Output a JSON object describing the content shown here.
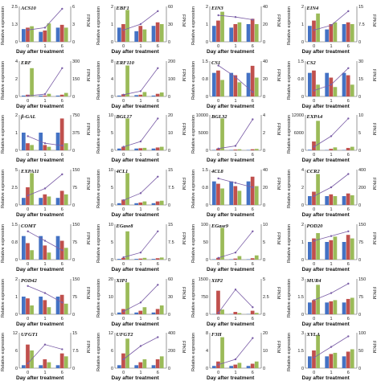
{
  "colors": {
    "bar_blue": "#4472c4",
    "bar_red": "#c0504d",
    "bar_green": "#9bbb59",
    "bar_orange": "#f79646",
    "bar_teal": "#4bacc6",
    "bar_purple": "#8064a2",
    "line_purple": "#7b5ea7",
    "line_orange": "#f0a04b"
  },
  "labels": {
    "x_axis_title": "Day after treatment",
    "y_left_title": "Relative expression",
    "y_right_title": "FPKM"
  },
  "chart_data": [
    {
      "gene": "ACS10",
      "type": "bar",
      "x": [
        "0",
        "1",
        "6"
      ],
      "ylim": [
        0,
        2.5
      ],
      "y2lim": [
        0,
        6
      ],
      "bars": [
        [
          0.9,
          1.0,
          1.1
        ],
        [
          0.7,
          0.8,
          1.3
        ],
        [
          1.0,
          1.2,
          1.0
        ]
      ],
      "line": [
        2,
        2.4,
        5.6
      ]
    },
    {
      "gene": "EBF1",
      "type": "bar",
      "x": [
        "0",
        "1",
        "6"
      ],
      "ylim": [
        0,
        2
      ],
      "y2lim": [
        0,
        60
      ],
      "bars": [
        [
          0.8,
          1.0,
          1.8
        ],
        [
          0.6,
          0.9,
          0.7
        ],
        [
          0.9,
          1.1,
          1.0
        ]
      ],
      "line": [
        20,
        30,
        52
      ]
    },
    {
      "gene": "EIN3",
      "type": "bar",
      "x": [
        "0",
        "1",
        "6"
      ],
      "ylim": [
        0,
        2
      ],
      "y2lim": [
        0,
        40
      ],
      "bars": [
        [
          0.9,
          1.2,
          1.7
        ],
        [
          0.8,
          1.0,
          1.1
        ],
        [
          1.0,
          1.3,
          1.0
        ]
      ],
      "line": [
        30,
        28,
        25
      ]
    },
    {
      "gene": "EIN4",
      "type": "bar",
      "x": [
        "0",
        "1",
        "6"
      ],
      "ylim": [
        0,
        2
      ],
      "y2lim": [
        0,
        15
      ],
      "bars": [
        [
          0.9,
          1.2,
          1.6
        ],
        [
          0.7,
          1.0,
          1.1
        ],
        [
          1.0,
          1.1,
          1.0
        ]
      ],
      "line": [
        5,
        7,
        13
      ]
    },
    {
      "gene": "ERF",
      "type": "bar",
      "x": [
        "0",
        "1",
        "6"
      ],
      "ylim": [
        0,
        4
      ],
      "y2lim": [
        0,
        300
      ],
      "bars": [
        [
          0.1,
          0.2,
          3.2
        ],
        [
          0.1,
          0.1,
          0.3
        ],
        [
          0.1,
          0.2,
          0.4
        ]
      ],
      "line": [
        5,
        20,
        240
      ]
    },
    {
      "gene": "ERF110",
      "type": "bar",
      "x": [
        "0",
        "1",
        "6"
      ],
      "ylim": [
        0,
        8
      ],
      "y2lim": [
        0,
        200
      ],
      "bars": [
        [
          0.2,
          0.5,
          7.0
        ],
        [
          0.3,
          0.4,
          1.0
        ],
        [
          0.2,
          0.6,
          0.9
        ]
      ],
      "line": [
        10,
        30,
        160
      ]
    },
    {
      "gene": "CS1",
      "type": "bar",
      "x": [
        "0",
        "1",
        "6"
      ],
      "ylim": [
        0,
        1.5
      ],
      "y2lim": [
        0,
        40
      ],
      "bars": [
        [
          1.0,
          1.1,
          0.7
        ],
        [
          1.0,
          0.9,
          0.6
        ],
        [
          1.0,
          1.3,
          0.8
        ]
      ],
      "line": [
        35,
        22,
        5
      ]
    },
    {
      "gene": "CS2",
      "type": "bar",
      "x": [
        "0",
        "1",
        "6"
      ],
      "ylim": [
        0,
        1.5
      ],
      "y2lim": [
        0,
        30
      ],
      "bars": [
        [
          1.0,
          1.1,
          0.5
        ],
        [
          1.0,
          0.8,
          0.4
        ],
        [
          1.0,
          0.9,
          0.5
        ]
      ],
      "line": [
        5,
        10,
        24
      ]
    },
    {
      "gene": "β-GAL",
      "type": "bar",
      "x": [
        "0",
        "1",
        "6"
      ],
      "ylim": [
        0,
        2
      ],
      "y2lim": [
        0,
        750
      ],
      "bars": [
        [
          1.0,
          0.4,
          0.3
        ],
        [
          1.0,
          0.3,
          0.2
        ],
        [
          1.0,
          1.8,
          0.4
        ]
      ],
      "line": [
        300,
        150,
        100
      ]
    },
    {
      "gene": "BGL17",
      "type": "bar",
      "x": [
        "0",
        "1",
        "6"
      ],
      "ylim": [
        0,
        10
      ],
      "y2lim": [
        0,
        20
      ],
      "bars": [
        [
          0.5,
          1.0,
          9.0
        ],
        [
          0.5,
          0.6,
          0.7
        ],
        [
          0.5,
          0.8,
          1.0
        ]
      ],
      "line": [
        2,
        5,
        18
      ]
    },
    {
      "gene": "BGL32",
      "type": "bar",
      "x": [
        "0",
        "1",
        "6"
      ],
      "ylim": [
        0,
        10000
      ],
      "y2lim": [
        0,
        4
      ],
      "bars": [
        [
          100,
          500,
          9000
        ],
        [
          100,
          200,
          300
        ],
        [
          100,
          300,
          400
        ]
      ],
      "line": [
        0.2,
        0.5,
        3.5
      ]
    },
    {
      "gene": "EXPA4",
      "type": "bar",
      "x": [
        "0",
        "1",
        "6"
      ],
      "ylim": [
        0,
        12000
      ],
      "y2lim": [
        0,
        10
      ],
      "bars": [
        [
          200,
          3000,
          10000
        ],
        [
          100,
          500,
          1000
        ],
        [
          100,
          800,
          1200
        ]
      ],
      "line": [
        1,
        4,
        9
      ]
    },
    {
      "gene": "EXPA11",
      "type": "bar",
      "x": [
        "0",
        "1",
        "6"
      ],
      "ylim": [
        0,
        5
      ],
      "y2lim": [
        0,
        150
      ],
      "bars": [
        [
          1.0,
          2.5,
          4.5
        ],
        [
          1.0,
          1.5,
          1.2
        ],
        [
          1.0,
          2.0,
          1.5
        ]
      ],
      "line": [
        40,
        70,
        130
      ]
    },
    {
      "gene": "4CL1",
      "type": "bar",
      "x": [
        "0",
        "1",
        "6"
      ],
      "ylim": [
        0,
        10
      ],
      "y2lim": [
        0,
        15
      ],
      "bars": [
        [
          0.5,
          1.5,
          9.0
        ],
        [
          0.5,
          0.7,
          1.0
        ],
        [
          0.5,
          1.0,
          1.2
        ]
      ],
      "line": [
        2,
        5,
        12
      ]
    },
    {
      "gene": "4CL8",
      "type": "bar",
      "x": [
        "0",
        "1",
        "6"
      ],
      "ylim": [
        0,
        1.5
      ],
      "y2lim": [
        0,
        40
      ],
      "bars": [
        [
          1.0,
          0.9,
          0.7
        ],
        [
          1.0,
          0.8,
          0.6
        ],
        [
          1.0,
          1.2,
          0.8
        ]
      ],
      "line": [
        30,
        25,
        20
      ]
    },
    {
      "gene": "CCR2",
      "type": "bar",
      "x": [
        "0",
        "1",
        "6"
      ],
      "ylim": [
        0,
        4
      ],
      "y2lim": [
        0,
        400
      ],
      "bars": [
        [
          1.0,
          1.5,
          3.5
        ],
        [
          1.0,
          1.2,
          1.0
        ],
        [
          1.0,
          1.3,
          1.1
        ]
      ],
      "line": [
        100,
        200,
        350
      ]
    },
    {
      "gene": "COMT",
      "type": "bar",
      "x": [
        "0",
        "1",
        "6"
      ],
      "ylim": [
        0,
        1.5
      ],
      "y2lim": [
        0,
        150
      ],
      "bars": [
        [
          1.0,
          0.7,
          0.4
        ],
        [
          1.0,
          0.6,
          0.3
        ],
        [
          1.0,
          0.8,
          0.5
        ]
      ],
      "line": [
        120,
        80,
        40
      ]
    },
    {
      "gene": "EGase8",
      "type": "bar",
      "x": [
        "0",
        "1",
        "6"
      ],
      "ylim": [
        0,
        10
      ],
      "y2lim": [
        0,
        15
      ],
      "bars": [
        [
          0.2,
          0.5,
          8.0
        ],
        [
          0.2,
          0.3,
          0.5
        ],
        [
          0.2,
          0.4,
          0.6
        ]
      ],
      "line": [
        1,
        3,
        12
      ]
    },
    {
      "gene": "EGase9",
      "type": "bar",
      "x": [
        "0",
        "1",
        "6"
      ],
      "ylim": [
        0,
        100
      ],
      "y2lim": [
        0,
        10
      ],
      "bars": [
        [
          1,
          5,
          90
        ],
        [
          1,
          3,
          10
        ],
        [
          1,
          4,
          12
        ]
      ],
      "line": [
        0.5,
        2,
        8
      ]
    },
    {
      "gene": "POD20",
      "type": "bar",
      "x": [
        "0",
        "1",
        "6"
      ],
      "ylim": [
        0,
        2
      ],
      "y2lim": [
        0,
        150
      ],
      "bars": [
        [
          1.0,
          1.2,
          1.5
        ],
        [
          1.0,
          1.1,
          1.3
        ],
        [
          1.0,
          1.4,
          1.2
        ]
      ],
      "line": [
        80,
        100,
        120
      ]
    },
    {
      "gene": "POD42",
      "type": "bar",
      "x": [
        "0",
        "1",
        "6"
      ],
      "ylim": [
        0,
        2
      ],
      "y2lim": [
        0,
        150
      ],
      "bars": [
        [
          1.0,
          0.9,
          0.5
        ],
        [
          1.0,
          0.8,
          0.4
        ],
        [
          1.0,
          1.1,
          0.6
        ]
      ],
      "line": [
        120,
        90,
        50
      ]
    },
    {
      "gene": "XIP1",
      "type": "bar",
      "x": [
        "0",
        "1",
        "6"
      ],
      "ylim": [
        0,
        20
      ],
      "y2lim": [
        0,
        60
      ],
      "bars": [
        [
          1,
          3,
          18
        ],
        [
          1,
          2,
          4
        ],
        [
          1,
          3,
          5
        ]
      ],
      "line": [
        5,
        20,
        50
      ]
    },
    {
      "gene": "XIP2",
      "type": "bar",
      "x": [
        "0",
        "1",
        "6"
      ],
      "ylim": [
        0,
        1500
      ],
      "y2lim": [
        0,
        5
      ],
      "bars": [
        [
          10,
          1000,
          200
        ],
        [
          10,
          100,
          50
        ],
        [
          10,
          150,
          60
        ]
      ],
      "line": [
        0.2,
        3.5,
        1.0
      ]
    },
    {
      "gene": "MUR4",
      "type": "bar",
      "x": [
        "0",
        "1",
        "6"
      ],
      "ylim": [
        0,
        3
      ],
      "y2lim": [
        0,
        150
      ],
      "bars": [
        [
          1.0,
          1.2,
          2.5
        ],
        [
          1.0,
          1.1,
          1.2
        ],
        [
          1.0,
          1.3,
          1.4
        ]
      ],
      "line": [
        60,
        90,
        130
      ]
    },
    {
      "gene": "UFGT1",
      "type": "bar",
      "x": [
        "0",
        "1",
        "6"
      ],
      "ylim": [
        0,
        12
      ],
      "y2lim": [
        0,
        15
      ],
      "bars": [
        [
          1,
          8,
          6
        ],
        [
          1,
          3,
          2
        ],
        [
          1,
          5,
          4
        ]
      ],
      "line": [
        2,
        10,
        8
      ]
    },
    {
      "gene": "UFGT2",
      "type": "bar",
      "x": [
        "0",
        "1",
        "6"
      ],
      "ylim": [
        0,
        12
      ],
      "y2lim": [
        0,
        400
      ],
      "bars": [
        [
          1,
          5,
          10
        ],
        [
          1,
          2,
          3
        ],
        [
          1,
          3,
          4
        ]
      ],
      "line": [
        100,
        250,
        350
      ]
    },
    {
      "gene": "F3H",
      "type": "bar",
      "x": [
        "0",
        "1",
        "6"
      ],
      "ylim": [
        0,
        8
      ],
      "y2lim": [
        0,
        20
      ],
      "bars": [
        [
          0.5,
          1.5,
          7.0
        ],
        [
          0.5,
          0.8,
          1.2
        ],
        [
          0.5,
          1.0,
          1.5
        ]
      ],
      "line": [
        2,
        5,
        17
      ]
    },
    {
      "gene": "XYLA",
      "type": "bar",
      "x": [
        "0",
        "1",
        "6"
      ],
      "ylim": [
        0,
        3
      ],
      "y2lim": [
        0,
        100
      ],
      "bars": [
        [
          1.0,
          1.5,
          2.8
        ],
        [
          1.0,
          1.2,
          1.3
        ],
        [
          1.0,
          1.4,
          1.6
        ]
      ],
      "line": [
        30,
        60,
        90
      ]
    }
  ]
}
